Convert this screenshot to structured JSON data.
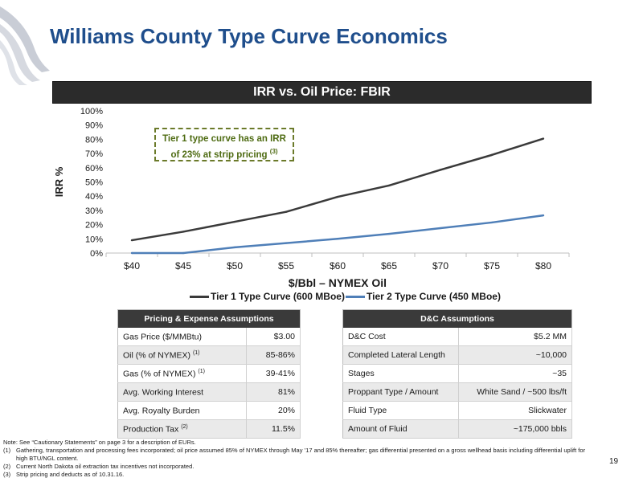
{
  "page": {
    "title": "Williams County Type Curve Economics",
    "number": "19"
  },
  "chart_data": {
    "type": "line",
    "title": "IRR vs. Oil Price: FBIR",
    "xlabel": "$/Bbl – NYMEX Oil",
    "ylabel": "IRR %",
    "categories": [
      "$40",
      "$45",
      "$50",
      "$55",
      "$60",
      "$65",
      "$70",
      "$75",
      "$80"
    ],
    "y_ticks": [
      "0%",
      "10%",
      "20%",
      "30%",
      "40%",
      "50%",
      "60%",
      "70%",
      "80%",
      "90%",
      "100%"
    ],
    "ylim": [
      0,
      100
    ],
    "grid": false,
    "legend_position": "bottom",
    "series": [
      {
        "name": "Tier 1 Type Curve (600 MBoe)",
        "values": [
          9,
          15,
          22,
          29,
          39.5,
          47.5,
          58.5,
          69,
          80.5
        ],
        "color": "#3a3a3a"
      },
      {
        "name": "Tier 2 Type Curve (450 MBoe)",
        "values": [
          0,
          0,
          4,
          7,
          10,
          13.5,
          17.5,
          21.5,
          26.5
        ],
        "color": "#4f7fb8"
      }
    ],
    "annotation": {
      "line1": "Tier 1 type curve has an IRR",
      "line2": "of 23% at strip pricing",
      "note": "(3)"
    }
  },
  "pricing_table": {
    "header": "Pricing & Expense Assumptions",
    "rows": [
      {
        "label": "Gas Price ($/MMBtu)",
        "note": "",
        "value": "$3.00"
      },
      {
        "label": "Oil (% of NYMEX)",
        "note": "(1)",
        "value": "85-86%"
      },
      {
        "label": "Gas (% of NYMEX)",
        "note": "(1)",
        "value": "39-41%"
      },
      {
        "label": "Avg. Working Interest",
        "note": "",
        "value": "81%"
      },
      {
        "label": "Avg. Royalty Burden",
        "note": "",
        "value": "20%"
      },
      {
        "label": "Production Tax",
        "note": "(2)",
        "value": "11.5%"
      }
    ]
  },
  "dc_table": {
    "header": "D&C Assumptions",
    "rows": [
      {
        "label": "D&C Cost",
        "value": "$5.2 MM"
      },
      {
        "label": "Completed Lateral Length",
        "value": "~10,000"
      },
      {
        "label": "Stages",
        "value": "~35"
      },
      {
        "label": "Proppant Type / Amount",
        "value": "White Sand / ~500 lbs/ft"
      },
      {
        "label": "Fluid Type",
        "value": "Slickwater"
      },
      {
        "label": "Amount of Fluid",
        "value": "~175,000 bbls"
      }
    ]
  },
  "footnotes": {
    "intro": "Note: See “Cautionary Statements” on page 3 for a description of EURs.",
    "items": [
      {
        "num": "(1)",
        "text": "Gathering, transportation and processing fees incorporated; oil price assumed 85% of NYMEX through May ’17 and 85% thereafter; gas differential presented on a gross wellhead basis including differential uplift for high BTU/NGL content."
      },
      {
        "num": "(2)",
        "text": "Current North Dakota oil extraction tax incentives not incorporated."
      },
      {
        "num": "(3)",
        "text": "Strip pricing and deducts as of 10.31.16."
      }
    ]
  }
}
